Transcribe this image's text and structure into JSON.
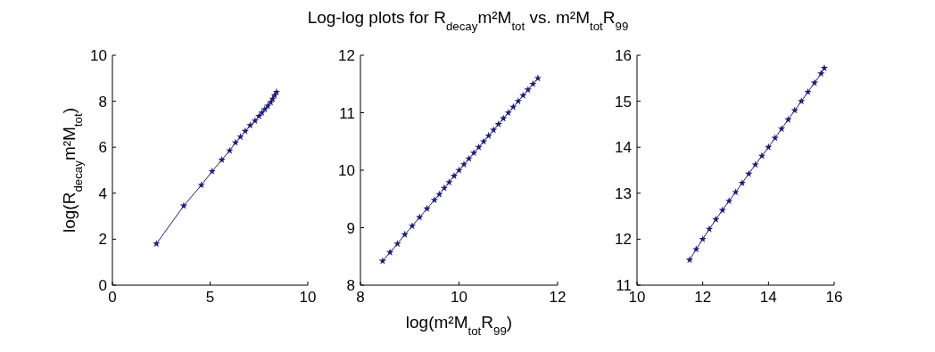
{
  "chart_data": [
    {
      "type": "line",
      "ylabel": "log(R$_{decay}$m²M$_{tot}$)",
      "marker": "star",
      "line_style": "solid",
      "xlim": [
        0,
        10
      ],
      "ylim": [
        0,
        10
      ],
      "xticks": [
        0,
        5,
        10
      ],
      "yticks": [
        0,
        2,
        4,
        6,
        8,
        10
      ],
      "series": [
        {
          "color": "#1c1c7a",
          "x": [
            2.25,
            3.65,
            4.55,
            5.1,
            5.6,
            6.0,
            6.3,
            6.55,
            6.8,
            7.05,
            7.3,
            7.5,
            7.65,
            7.8,
            7.95,
            8.1,
            8.2,
            8.3,
            8.4
          ],
          "values": [
            1.8,
            3.45,
            4.35,
            4.95,
            5.45,
            5.85,
            6.2,
            6.45,
            6.7,
            6.95,
            7.15,
            7.35,
            7.5,
            7.65,
            7.8,
            7.95,
            8.1,
            8.25,
            8.4
          ]
        }
      ]
    },
    {
      "type": "line",
      "title": "Log-log plots for R$_{decay}$m²M$_{tot}$ vs. m²M$_{tot}$R$_{99}$",
      "xlabel": "log(m²M$_{tot}$R$_{99}$)",
      "marker": "star",
      "line_style": "solid",
      "xlim": [
        8,
        12
      ],
      "ylim": [
        8,
        12
      ],
      "xticks": [
        8,
        10,
        12
      ],
      "yticks": [
        8,
        9,
        10,
        11,
        12
      ],
      "series": [
        {
          "color": "#1c1c7a",
          "x": [
            8.45,
            8.6,
            8.75,
            8.9,
            9.05,
            9.2,
            9.35,
            9.5,
            9.6,
            9.7,
            9.8,
            9.9,
            10.0,
            10.1,
            10.2,
            10.3,
            10.4,
            10.5,
            10.6,
            10.7,
            10.8,
            10.9,
            11.0,
            11.1,
            11.2,
            11.3,
            11.4,
            11.5,
            11.6
          ],
          "values": [
            8.42,
            8.57,
            8.72,
            8.88,
            9.03,
            9.18,
            9.33,
            9.48,
            9.58,
            9.69,
            9.79,
            9.9,
            10.0,
            10.1,
            10.2,
            10.3,
            10.4,
            10.5,
            10.6,
            10.7,
            10.8,
            10.9,
            11.0,
            11.1,
            11.2,
            11.3,
            11.4,
            11.5,
            11.6
          ]
        }
      ]
    },
    {
      "type": "line",
      "marker": "star",
      "line_style": "solid",
      "xlim": [
        10,
        16
      ],
      "ylim": [
        11,
        16
      ],
      "xticks": [
        10,
        12,
        14,
        16
      ],
      "yticks": [
        11,
        12,
        13,
        14,
        15,
        16
      ],
      "series": [
        {
          "color": "#1c1c7a",
          "x": [
            11.6,
            11.8,
            12.0,
            12.2,
            12.4,
            12.6,
            12.8,
            13.0,
            13.2,
            13.4,
            13.6,
            13.8,
            14.0,
            14.2,
            14.4,
            14.6,
            14.8,
            15.0,
            15.2,
            15.4,
            15.6,
            15.7
          ],
          "values": [
            11.55,
            11.78,
            12.0,
            12.22,
            12.43,
            12.63,
            12.83,
            13.02,
            13.22,
            13.42,
            13.62,
            13.81,
            14.0,
            14.2,
            14.4,
            14.6,
            14.8,
            15.0,
            15.2,
            15.4,
            15.6,
            15.72
          ]
        }
      ]
    }
  ]
}
